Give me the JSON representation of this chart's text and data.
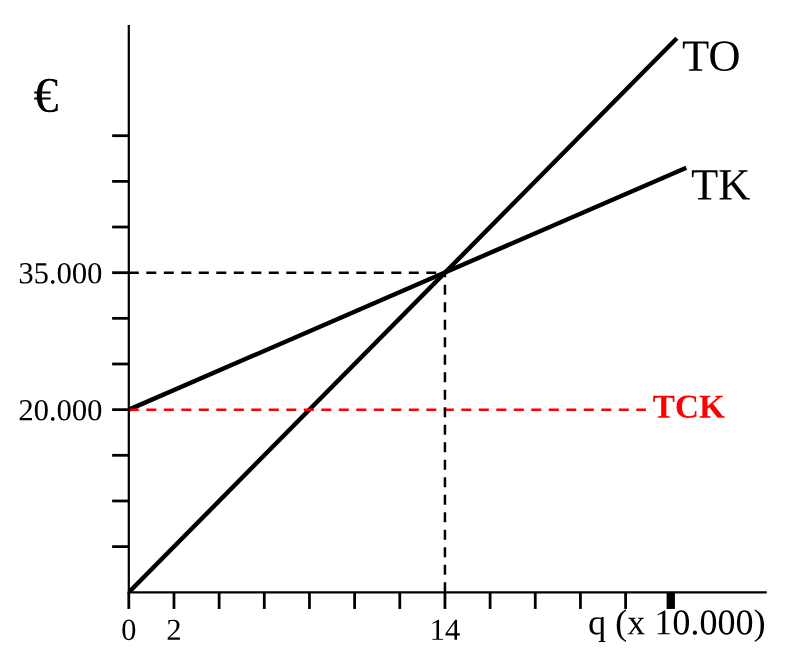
{
  "chart_data": {
    "type": "line",
    "xlabel": "q (x 10.000)",
    "ylabel": "€",
    "xlim": [
      0,
      28.2
    ],
    "ylim": [
      0,
      62000
    ],
    "xticks": [
      {
        "value": 0,
        "label": "0"
      },
      {
        "value": 2,
        "label": "2"
      },
      {
        "value": 4,
        "label": null
      },
      {
        "value": 6,
        "label": null
      },
      {
        "value": 8,
        "label": null
      },
      {
        "value": 10,
        "label": null
      },
      {
        "value": 12,
        "label": null
      },
      {
        "value": 14,
        "label": "14"
      },
      {
        "value": 16,
        "label": null
      },
      {
        "value": 18,
        "label": null
      },
      {
        "value": 20,
        "label": null
      },
      {
        "value": 22,
        "label": null
      },
      {
        "value": 24,
        "label": null
      }
    ],
    "yticks": [
      {
        "value": 5000,
        "label": null
      },
      {
        "value": 10000,
        "label": null
      },
      {
        "value": 15000,
        "label": null
      },
      {
        "value": 20000,
        "label": "20.000"
      },
      {
        "value": 25000,
        "label": null
      },
      {
        "value": 30000,
        "label": null
      },
      {
        "value": 35000,
        "label": "35.000"
      },
      {
        "value": 40000,
        "label": null
      },
      {
        "value": 45000,
        "label": null
      },
      {
        "value": 50000,
        "label": null
      }
    ],
    "series": [
      {
        "name": "TO",
        "color": "#000000",
        "x": [
          0,
          24.2
        ],
        "values": [
          0,
          60500
        ]
      },
      {
        "name": "TK",
        "color": "#000000",
        "x": [
          0,
          24.6
        ],
        "values": [
          20000,
          46400
        ]
      },
      {
        "name": "TCK",
        "color": "#ff0000",
        "x": [
          0,
          22.9
        ],
        "values": [
          20000,
          20000
        ],
        "line_style": "dashed"
      },
      {
        "color": "#000000",
        "x": [
          0,
          14
        ],
        "values": [
          35000,
          35000
        ],
        "line_style": "dashed"
      },
      {
        "color": "#000000",
        "x": [
          14,
          14
        ],
        "values": [
          0,
          35000
        ],
        "line_style": "dashed"
      }
    ],
    "legend": false,
    "grid": false,
    "marker": "none",
    "line_style": "solid"
  }
}
